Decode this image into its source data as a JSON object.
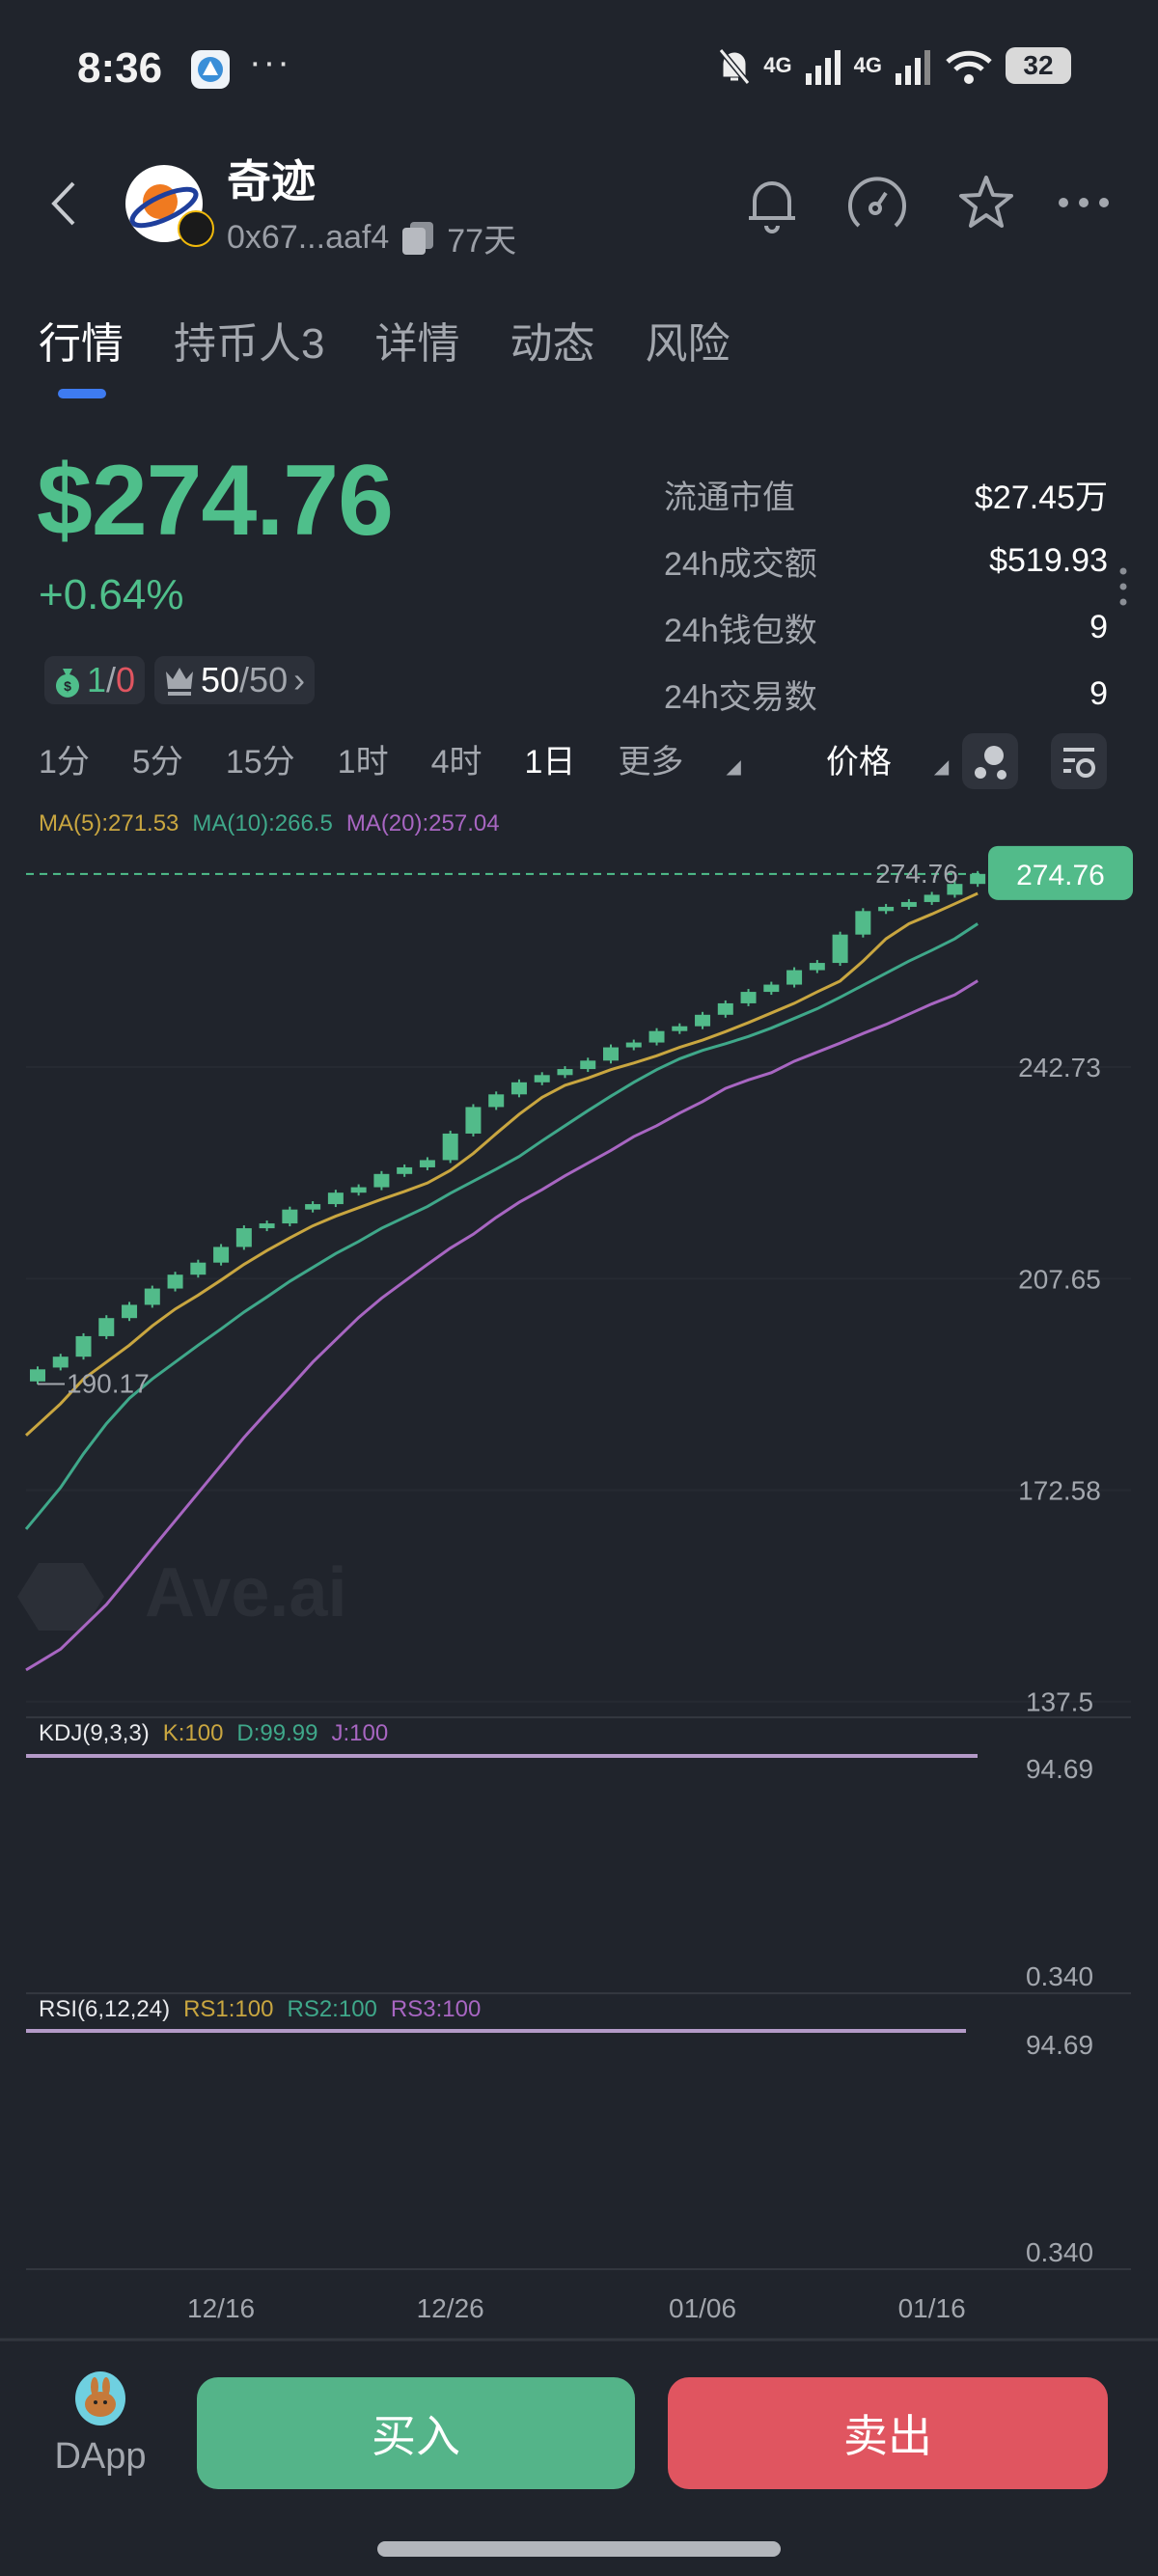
{
  "status_bar": {
    "time": "8:36",
    "more": "···",
    "network1": "4G",
    "network2": "4G",
    "battery": "32"
  },
  "header": {
    "title": "奇迹",
    "address": "0x67...aaf4",
    "age": "77天"
  },
  "tabs": [
    {
      "label": "行情",
      "active": true
    },
    {
      "label": "持币人3"
    },
    {
      "label": "详情"
    },
    {
      "label": "动态"
    },
    {
      "label": "风险"
    }
  ],
  "price": {
    "value": "$274.76",
    "change": "+0.64%"
  },
  "badges": {
    "money_a": "1",
    "money_sep": "/",
    "money_b": "0",
    "top_a": "50",
    "top_b": "/50",
    "top_chevron": "›"
  },
  "stats": [
    {
      "label": "流通市值",
      "value": "$27.45万"
    },
    {
      "label": "24h成交额",
      "value": "$519.93"
    },
    {
      "label": "24h钱包数",
      "value": "9"
    },
    {
      "label": "24h交易数",
      "value": "9"
    }
  ],
  "timeframes": [
    {
      "label": "1分"
    },
    {
      "label": "5分"
    },
    {
      "label": "15分"
    },
    {
      "label": "1时"
    },
    {
      "label": "4时"
    },
    {
      "label": "1日",
      "selected": true
    }
  ],
  "more_label": "更多",
  "price_mode_label": "价格",
  "ma_legend": [
    {
      "label": "MA(5):271.53",
      "color": "#c9a640"
    },
    {
      "label": "MA(10):266.5",
      "color": "#3fa88a"
    },
    {
      "label": "MA(20):257.04",
      "color": "#a866c2"
    }
  ],
  "watermark": "Ave.ai",
  "colors": {
    "up": "#52bb8a",
    "down": "#e05560",
    "accent": "#3e7bf0",
    "background": "#20242c"
  },
  "chart_data": {
    "type": "candlestick",
    "last_price_label": "274.76",
    "low_label": "190.17",
    "y_ticks": [
      "242.73",
      "207.65",
      "172.58",
      "137.5"
    ],
    "ylim": [
      137.5,
      277.8
    ],
    "x_ticks": [
      "12/16",
      "12/26",
      "01/06",
      "01/16"
    ],
    "candles": [
      {
        "date": "12/08",
        "open": 190.6,
        "close": 192.6,
        "low": 190.17
      },
      {
        "date": "12/09",
        "open": 192.9,
        "close": 194.7
      },
      {
        "date": "12/10",
        "open": 194.7,
        "close": 198.1
      },
      {
        "date": "12/11",
        "open": 198.1,
        "close": 201.1
      },
      {
        "date": "12/12",
        "open": 201.1,
        "close": 203.3
      },
      {
        "date": "12/13",
        "open": 203.3,
        "close": 206.0
      },
      {
        "date": "12/14",
        "open": 206.0,
        "close": 208.3
      },
      {
        "date": "12/15",
        "open": 208.3,
        "close": 210.3
      },
      {
        "date": "12/16",
        "open": 210.3,
        "close": 212.9
      },
      {
        "date": "12/17",
        "open": 212.9,
        "close": 216.0
      },
      {
        "date": "12/18",
        "open": 216.0,
        "close": 216.8
      },
      {
        "date": "12/19",
        "open": 216.8,
        "close": 219.1
      },
      {
        "date": "12/20",
        "open": 219.1,
        "close": 220.0
      },
      {
        "date": "12/21",
        "open": 220.0,
        "close": 221.9
      },
      {
        "date": "12/22",
        "open": 221.9,
        "close": 222.8
      },
      {
        "date": "12/23",
        "open": 222.8,
        "close": 225.0
      },
      {
        "date": "12/24",
        "open": 225.0,
        "close": 226.1
      },
      {
        "date": "12/25",
        "open": 226.1,
        "close": 227.3
      },
      {
        "date": "12/26",
        "open": 227.3,
        "close": 231.7
      },
      {
        "date": "12/27",
        "open": 231.7,
        "close": 236.1
      },
      {
        "date": "12/28",
        "open": 236.1,
        "close": 238.2
      },
      {
        "date": "12/29",
        "open": 238.2,
        "close": 240.2
      },
      {
        "date": "12/30",
        "open": 240.2,
        "close": 241.4
      },
      {
        "date": "12/31",
        "open": 241.4,
        "close": 242.4
      },
      {
        "date": "01/01",
        "open": 242.4,
        "close": 243.8
      },
      {
        "date": "01/02",
        "open": 243.8,
        "close": 246.0
      },
      {
        "date": "01/03",
        "open": 246.0,
        "close": 246.8
      },
      {
        "date": "01/04",
        "open": 246.8,
        "close": 248.7
      },
      {
        "date": "01/05",
        "open": 248.7,
        "close": 249.5
      },
      {
        "date": "01/06",
        "open": 249.5,
        "close": 251.4
      },
      {
        "date": "01/07",
        "open": 251.4,
        "close": 253.3
      },
      {
        "date": "01/08",
        "open": 253.3,
        "close": 255.2
      },
      {
        "date": "01/09",
        "open": 255.2,
        "close": 256.4
      },
      {
        "date": "01/10",
        "open": 256.4,
        "close": 258.8
      },
      {
        "date": "01/11",
        "open": 258.8,
        "close": 260.0
      },
      {
        "date": "01/12",
        "open": 260.0,
        "close": 264.7
      },
      {
        "date": "01/13",
        "open": 264.7,
        "close": 268.6
      },
      {
        "date": "01/14",
        "open": 268.6,
        "close": 269.3
      },
      {
        "date": "01/15",
        "open": 269.3,
        "close": 270.1
      },
      {
        "date": "01/16",
        "open": 270.1,
        "close": 271.3
      },
      {
        "date": "01/17",
        "open": 271.3,
        "close": 273.1
      },
      {
        "date": "01/18",
        "open": 273.1,
        "close": 274.76
      }
    ],
    "ma5": [
      183.4,
      186.9,
      191.0,
      193.8,
      196.6,
      199.8,
      202.6,
      204.9,
      207.4,
      210.0,
      212.3,
      214.4,
      216.4,
      218.0,
      219.4,
      220.8,
      222.1,
      223.5,
      225.6,
      228.4,
      231.7,
      234.9,
      237.7,
      239.7,
      240.9,
      242.3,
      243.4,
      244.6,
      246.0,
      247.2,
      248.6,
      250.1,
      251.7,
      253.3,
      255.2,
      257.0,
      260.3,
      264.0,
      266.5,
      268.1,
      269.8,
      271.53
    ],
    "ma10": [
      168.4,
      173.0,
      178.6,
      183.6,
      187.8,
      191.0,
      193.8,
      196.6,
      199.3,
      202.1,
      204.6,
      207.2,
      209.5,
      211.8,
      213.8,
      216.0,
      217.8,
      219.6,
      221.8,
      223.8,
      225.8,
      227.9,
      230.5,
      233.0,
      235.5,
      237.9,
      240.2,
      242.3,
      244.1,
      245.5,
      246.6,
      247.8,
      249.2,
      250.8,
      252.4,
      254.3,
      256.3,
      258.3,
      260.3,
      262.1,
      264.0,
      266.5
    ],
    "ma20": [
      143.9,
      146.2,
      149.9,
      153.6,
      158.2,
      162.9,
      167.5,
      172.1,
      176.7,
      181.3,
      185.5,
      189.6,
      193.8,
      197.5,
      201.2,
      204.4,
      207.2,
      210.0,
      212.7,
      215.0,
      217.8,
      220.3,
      222.4,
      224.7,
      226.8,
      228.9,
      231.2,
      233.0,
      235.1,
      237.0,
      239.2,
      240.6,
      241.8,
      243.7,
      245.2,
      246.7,
      248.3,
      249.8,
      251.5,
      253.2,
      254.7,
      257.04
    ],
    "kdj": {
      "label": "KDJ(9,3,3)",
      "k": "K:100",
      "d": "D:99.99",
      "j": "J:100",
      "y_ticks": [
        "94.69",
        "0.340"
      ],
      "value": 100
    },
    "rsi": {
      "label": "RSI(6,12,24)",
      "rs1": "RS1:100",
      "rs2": "RS2:100",
      "rs3": "RS3:100",
      "y_ticks": [
        "94.69",
        "0.340"
      ],
      "value": 100
    }
  },
  "bottom": {
    "dapp_label": "DApp",
    "buy_label": "买入",
    "sell_label": "卖出"
  }
}
